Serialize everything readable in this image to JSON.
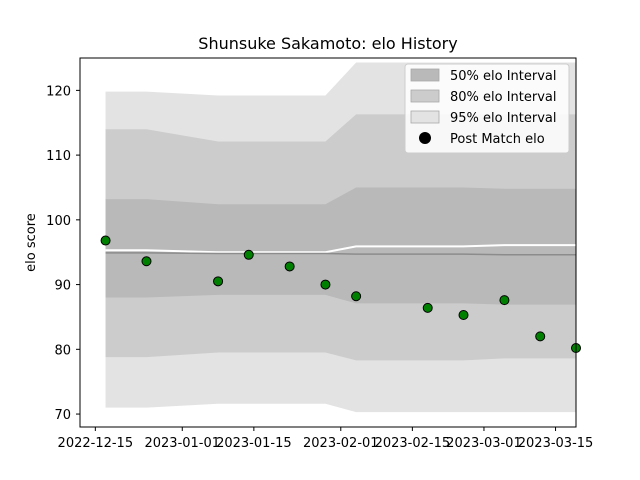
{
  "chart_data": {
    "type": "line",
    "title": "Shunsuke Sakamoto: elo History",
    "xlabel": "",
    "ylabel": "elo score",
    "x_ticks": [
      "2022-12-15",
      "2023-01-01",
      "2023-01-15",
      "2023-02-01",
      "2023-02-15",
      "2023-03-01",
      "2023-03-15"
    ],
    "y_ticks": [
      70,
      80,
      90,
      100,
      110,
      120
    ],
    "xlim": [
      "2022-12-12",
      "2023-03-19"
    ],
    "ylim": [
      68,
      125
    ],
    "legend_position": "top-right",
    "band_dates": [
      "2022-12-17",
      "2022-12-25",
      "2023-01-08",
      "2023-01-29",
      "2023-02-04",
      "2023-02-18",
      "2023-02-25",
      "2023-03-05",
      "2023-03-19"
    ],
    "bands": [
      {
        "name": "95% elo Interval",
        "color": "#e3e3e3",
        "lower": [
          71.0,
          71.0,
          71.6,
          71.6,
          70.3,
          70.3,
          70.3,
          70.3,
          70.3
        ],
        "upper": [
          119.8,
          119.8,
          119.2,
          119.2,
          124.3,
          124.3,
          124.3,
          124.3,
          124.3
        ]
      },
      {
        "name": "80% elo Interval",
        "color": "#cccccc",
        "lower": [
          78.8,
          78.8,
          79.5,
          79.5,
          78.3,
          78.3,
          78.3,
          78.6,
          78.6
        ],
        "upper": [
          114.0,
          114.0,
          112.1,
          112.1,
          116.3,
          116.3,
          116.3,
          116.3,
          116.3
        ]
      },
      {
        "name": "50% elo Interval",
        "color": "#b9b9b9",
        "lower": [
          88.0,
          88.0,
          88.4,
          88.4,
          87.1,
          87.1,
          87.1,
          86.9,
          86.9
        ],
        "upper": [
          103.2,
          103.2,
          102.4,
          102.4,
          105.0,
          105.0,
          105.0,
          104.8,
          104.8
        ]
      }
    ],
    "white_line": {
      "dates": [
        "2022-12-17",
        "2022-12-25",
        "2023-01-08",
        "2023-01-29",
        "2023-02-04",
        "2023-02-18",
        "2023-02-25",
        "2023-03-05",
        "2023-03-19"
      ],
      "values": [
        95.3,
        95.3,
        95.0,
        95.0,
        95.9,
        95.9,
        95.9,
        96.1,
        96.1
      ]
    },
    "median_line": {
      "dates": [
        "2022-12-17",
        "2022-12-25",
        "2023-01-08",
        "2023-01-29",
        "2023-02-04",
        "2023-02-18",
        "2023-02-25",
        "2023-03-05",
        "2023-03-19"
      ],
      "values": [
        94.9,
        94.9,
        94.8,
        94.8,
        94.7,
        94.7,
        94.7,
        94.6,
        94.6
      ]
    },
    "series": [
      {
        "name": "Post Match elo",
        "color": "#008000",
        "dates": [
          "2022-12-17",
          "2022-12-25",
          "2023-01-08",
          "2023-01-14",
          "2023-01-22",
          "2023-01-29",
          "2023-02-04",
          "2023-02-18",
          "2023-02-25",
          "2023-03-05",
          "2023-03-12",
          "2023-03-19"
        ],
        "values": [
          96.8,
          93.6,
          90.5,
          94.6,
          92.8,
          90.0,
          88.2,
          86.4,
          85.3,
          87.6,
          82.0,
          80.2
        ]
      }
    ]
  }
}
